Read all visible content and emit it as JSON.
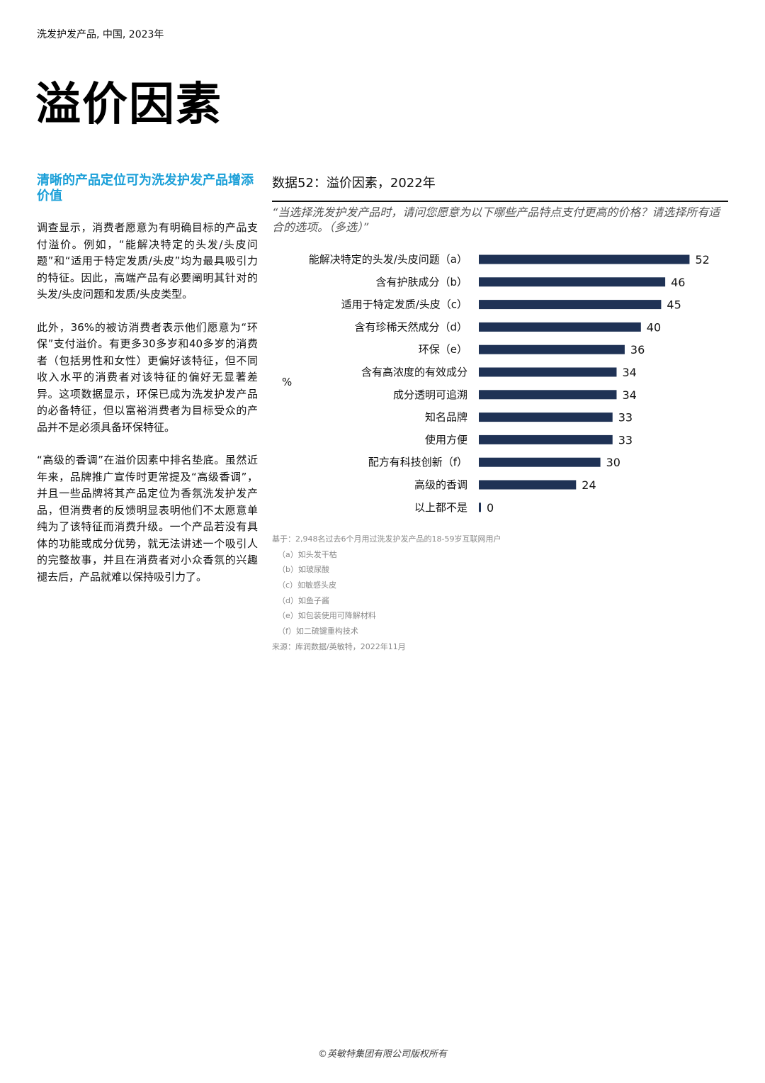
{
  "header": {
    "text": "洗发护发产品, 中国, 2023年"
  },
  "title": "溢价因素",
  "left": {
    "subheading": "清晰的产品定位可为洗发护发产品增添价值",
    "paragraphs": [
      "调查显示，消费者愿意为有明确目标的产品支付溢价。例如，“能解决特定的头发/头皮问题”和“适用于特定发质/头皮”均为最具吸引力的特征。因此，高端产品有必要阐明其针对的头发/头皮问题和发质/头皮类型。",
      "此外，36%的被访消费者表示他们愿意为“环保”支付溢价。有更多30多岁和40多岁的消费者（包括男性和女性）更偏好该特征，但不同收入水平的消费者对该特征的偏好无显著差异。这项数据显示，环保已成为洗发护发产品的必备特征，但以富裕消费者为目标受众的产品并不是必须具备环保特征。",
      "“高级的香调”在溢价因素中排名垫底。虽然近年来，品牌推广宣传时更常提及“高级香调”，并且一些品牌将其产品定位为香氛洗发护发产品，但消费者的反馈明显表明他们不太愿意单纯为了该特征而消费升级。一个产品若没有具体的功能或成分优势，就无法讲述一个吸引人的完整故事，并且在消费者对小众香氛的兴趣褪去后，产品就难以保持吸引力了。"
    ]
  },
  "figure": {
    "title": "数据52：溢价因素，2022年",
    "question": "“当选择洗发护发产品时，请问您愿意为以下哪些产品特点支付更高的价格？请选择所有适合的选项。（多选）”",
    "unit_label": "%"
  },
  "chart_data": {
    "type": "bar",
    "orientation": "horizontal",
    "title": "数据52：溢价因素，2022年",
    "unit": "%",
    "bar_color": "#1f3255",
    "categories": [
      "能解决特定的头发/头皮问题（a）",
      "含有护肤成分（b）",
      "适用于特定发质/头皮（c）",
      "含有珍稀天然成分（d）",
      "环保（e）",
      "含有高浓度的有效成分",
      "成分透明可追溯",
      "知名品牌",
      "使用方便",
      "配方有科技创新（f）",
      "高级的香调",
      "以上都不是"
    ],
    "values": [
      52,
      46,
      45,
      40,
      36,
      34,
      34,
      33,
      33,
      30,
      24,
      0
    ]
  },
  "notes": {
    "base": "基于：2,948名过去6个月用过洗发护发产品的18-59岁互联网用户",
    "footnotes": [
      "（a）如头发干枯",
      "（b）如玻尿酸",
      "（c）如敏感头皮",
      "（d）如鱼子酱",
      "（e）如包装使用可降解材料",
      "（f）如二硫键重构技术"
    ],
    "source": "来源：库润数据/英敏特，2022年11月"
  },
  "footer": "©英敏特集团有限公司版权所有"
}
